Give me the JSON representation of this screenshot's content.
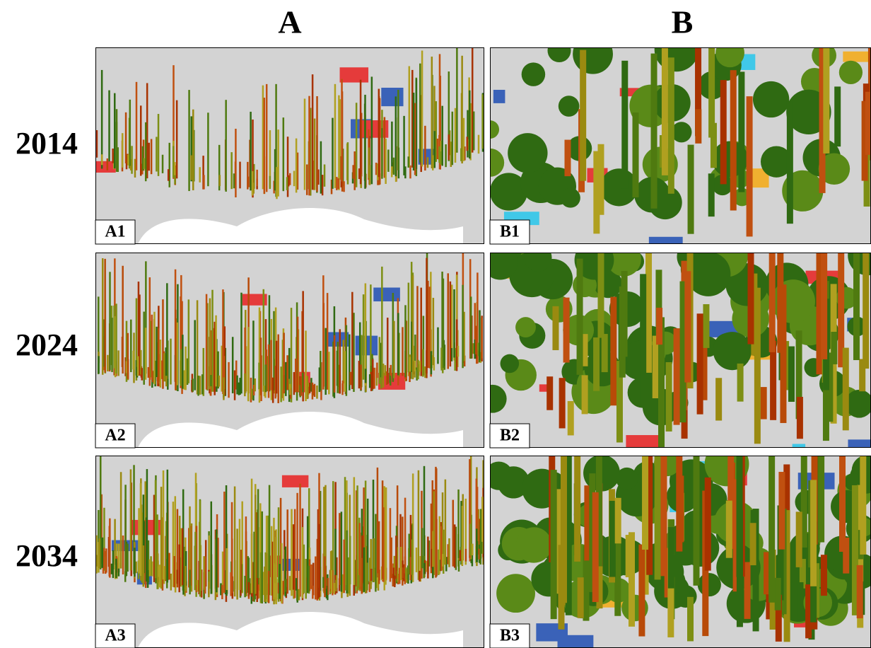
{
  "columns": [
    "A",
    "B"
  ],
  "rows": [
    "2014",
    "2024",
    "2034"
  ],
  "panels": [
    [
      "A1",
      "B1"
    ],
    [
      "A2",
      "B2"
    ],
    [
      "A3",
      "B3"
    ]
  ]
}
